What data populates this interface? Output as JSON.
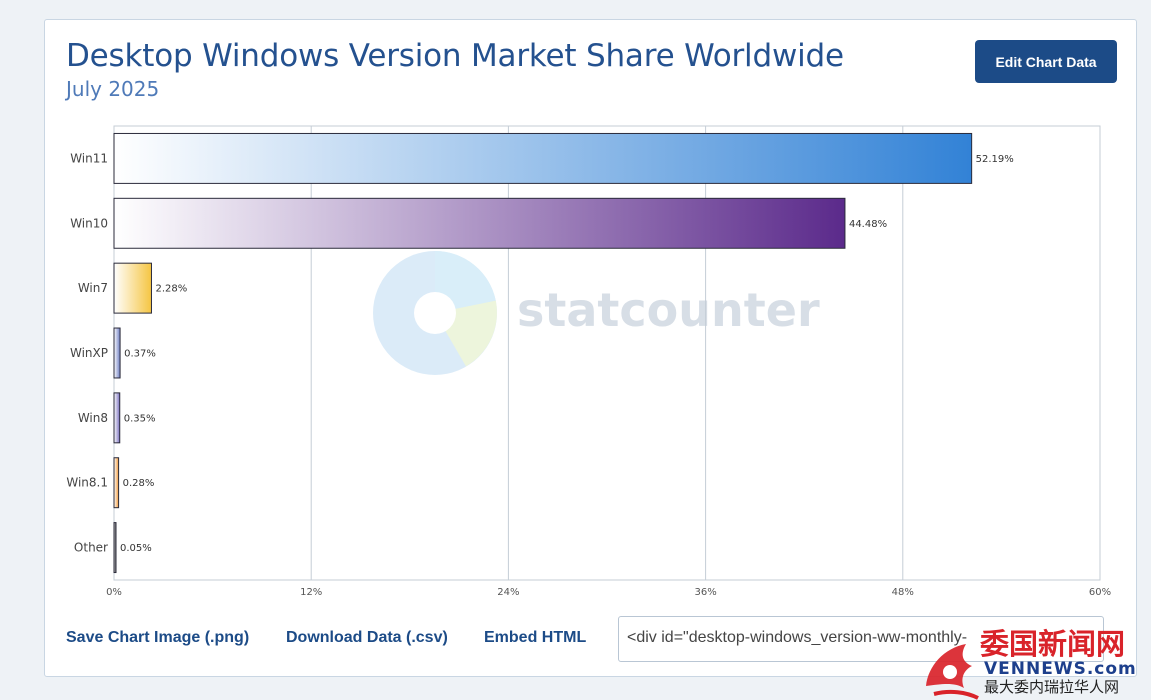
{
  "header": {
    "title": "Desktop Windows Version Market Share Worldwide",
    "subtitle": "July 2025",
    "edit_button": "Edit Chart Data"
  },
  "chart_data": {
    "type": "bar",
    "orientation": "horizontal",
    "categories": [
      "Win11",
      "Win10",
      "Win7",
      "WinXP",
      "Win8",
      "Win8.1",
      "Other"
    ],
    "values": [
      52.19,
      44.48,
      2.28,
      0.37,
      0.35,
      0.28,
      0.05
    ],
    "value_labels": [
      "52.19%",
      "44.48%",
      "2.28%",
      "0.37%",
      "0.35%",
      "0.28%",
      "0.05%"
    ],
    "bar_colors": [
      "#3282d6",
      "#5b2a8b",
      "#f5c542",
      "#6f7fc4",
      "#7b72c0",
      "#f29a3a",
      "#333333"
    ],
    "xlim": [
      0,
      60
    ],
    "xticks": [
      "0%",
      "12%",
      "24%",
      "36%",
      "48%",
      "60%"
    ],
    "grid": true,
    "watermark": "statcounter"
  },
  "links": {
    "save_image": "Save Chart Image (.png)",
    "download_data": "Download Data (.csv)",
    "embed_html": "Embed HTML",
    "embed_code": "<div id=\"desktop-windows_version-ww-monthly-"
  },
  "site_watermark": {
    "chinese": "委国新闻网",
    "latin": "VENNEWS.com",
    "tagline": "最大委内瑞拉华人网",
    "colors": {
      "red": "#d9232a",
      "blue": "#1d3f8c"
    }
  }
}
